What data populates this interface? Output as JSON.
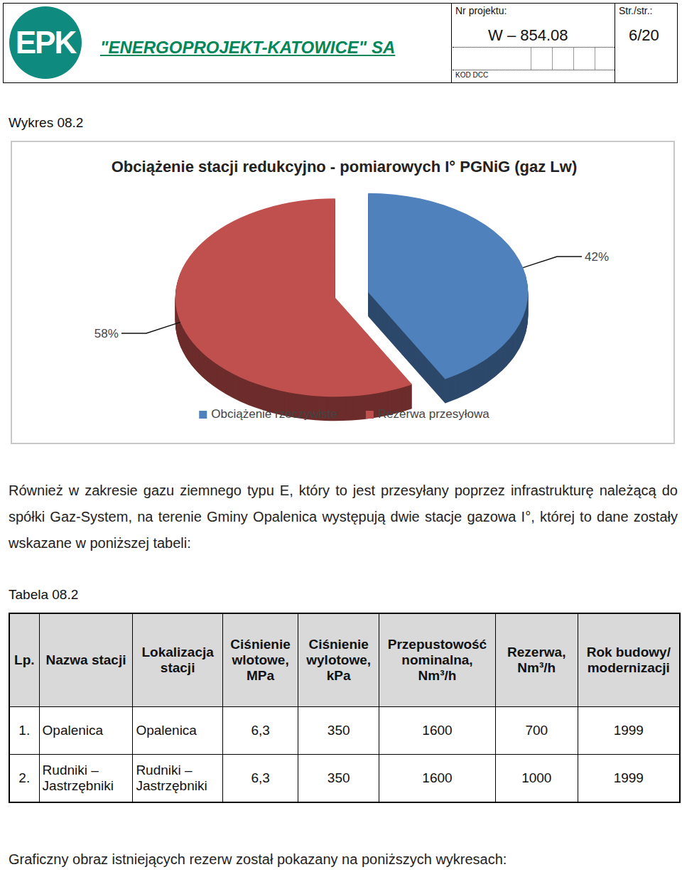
{
  "header": {
    "logo": "EPK",
    "company": "\"ENERGOPROJEKT-KATOWICE\" SA",
    "project_label": "Nr projektu:",
    "project_number": "W – 854.08",
    "page_label": "Str./str.:",
    "page": "6/20",
    "code_label": "KOD DCC"
  },
  "figure_caption": "Wykres 08.2",
  "chart_data": {
    "type": "pie",
    "title": "Obciążenie stacji redukcyjno - pomiarowych I° PGNiG (gaz Lw)",
    "categories": [
      "Obciążenie rzeczywiste",
      "Rezerwa przesyłowa"
    ],
    "values": [
      42,
      58
    ],
    "value_labels": [
      "42%",
      "58%"
    ],
    "colors": [
      "#4f81bd",
      "#c0504d"
    ],
    "data_labels": true,
    "legend": "bottom"
  },
  "paragraph": "Również w zakresie gazu ziemnego typu E, który to jest przesyłany poprzez infrastrukturę należącą do spółki Gaz-System, na terenie Gminy Opalenica występują dwie stacje gazowa I°, której to dane zostały wskazane w poniższej tabeli:",
  "table_caption": "Tabela 08.2",
  "table": {
    "columns": [
      "Lp.",
      "Nazwa stacji",
      "Lokalizacja stacji",
      "Ciśnienie wlotowe, MPa",
      "Ciśnienie wylotowe, kPa",
      "Przepustowość nominalna, Nm³/h",
      "Rezerwa, Nm³/h",
      "Rok budowy/ modernizacji"
    ],
    "rows": [
      [
        "1.",
        "Opalenica",
        "Opalenica",
        "6,3",
        "350",
        "1600",
        "700",
        "1999"
      ],
      [
        "2.",
        "Rudniki – Jastrzębniki",
        "Rudniki – Jastrzębniki",
        "6,3",
        "350",
        "1600",
        "1000",
        "1999"
      ]
    ]
  },
  "footer_text": "Graficzny obraz istniejących rezerw został pokazany na poniższych wykresach:"
}
